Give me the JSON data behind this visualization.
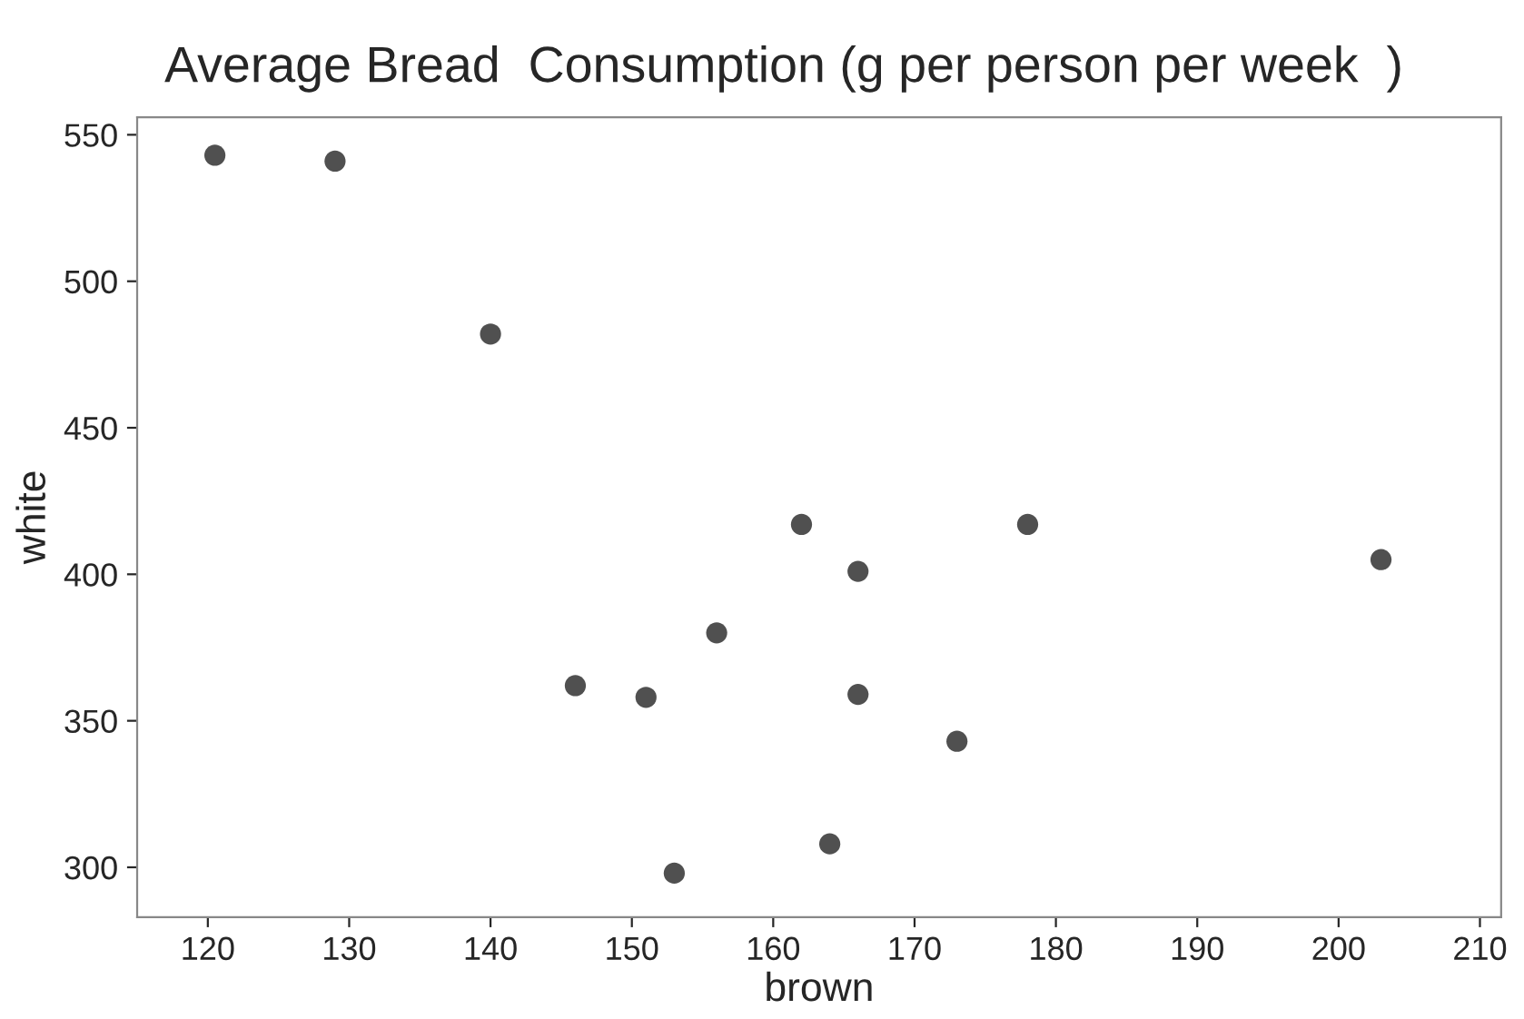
{
  "chart_data": {
    "type": "scatter",
    "title": "Average Bread  Consumption (g per person per week  )",
    "xlabel": "brown",
    "ylabel": "white",
    "x": [
      120.5,
      129,
      140,
      146,
      151,
      153,
      156,
      162,
      164,
      166,
      166,
      173,
      178,
      203
    ],
    "series": [
      {
        "color": "#505050",
        "values": [
          543,
          541,
          482,
          362,
          358,
          298,
          380,
          417,
          308,
          401,
          359,
          343,
          417,
          405
        ]
      }
    ],
    "xlim": [
      115,
      211.5
    ],
    "ylim": [
      283,
      556
    ],
    "xticks": [
      120,
      130,
      140,
      150,
      160,
      170,
      180,
      190,
      200,
      210
    ],
    "yticks": [
      300,
      350,
      400,
      450,
      500,
      550
    ],
    "marker": "circle",
    "grid": false
  }
}
